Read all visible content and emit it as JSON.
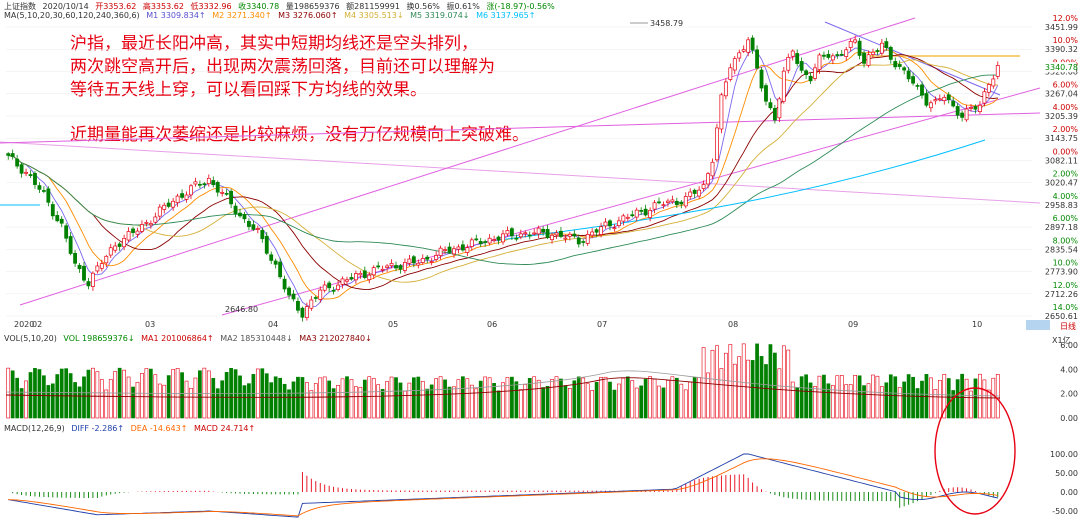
{
  "header": {
    "title": "上证指数",
    "date": "2020/10/14",
    "open": "开3353.62",
    "high": "高3353.62",
    "low": "低3332.96",
    "close": "收3340.78",
    "volume": "量198659376",
    "amount": "额281159991",
    "turnover": "换0.56%",
    "amplitude": "振0.61%",
    "change": "涨(-18.97)-0.56%"
  },
  "ma_line": {
    "label": "MA(5,10,20,30,60,120,240,360,6)",
    "m1": "M1 3309.834↑",
    "m2": "M2 3271.340↑",
    "m3": "M3 3276.060↑",
    "m4": "M4 3305.513↓",
    "m5": "M5 3319.074↓",
    "m6": "M6 3137.965↑"
  },
  "annotations": [
    "沪指，最近长阳冲高，其实中短期均线还是空头排列，",
    "两次跳空高开后，出现两次震荡回落，目前还可以理解为",
    "等待五天线上穿，可以看回踩下方均线的效果。",
    "近期量能再次萎缩还是比较麻烦，没有万亿规模向上突破难。"
  ],
  "vol_header": {
    "label": "VOL(5,10,20)",
    "vol": "VOL 198659376↓",
    "ma1": "MA1 201006864↑",
    "ma2": "MA2 185310448↓",
    "ma3": "MA3 212027840↓"
  },
  "macd_header": {
    "label": "MACD(12,26,9)",
    "diff": "DIFF -2.286↑",
    "dea": "DEA -14.643↑",
    "macd": "MACD 24.714↑"
  },
  "price_axis_right": [
    "3451.99",
    "3390.32",
    "3328.68",
    "3267.04",
    "3205.39",
    "3143.75",
    "3082.11",
    "3020.47",
    "2958.83",
    "2897.18",
    "2835.54",
    "2773.90",
    "2712.26",
    "2650.61"
  ],
  "pct_axis_right": [
    "12.0%",
    "10.0%",
    "8.00%",
    "6.00%",
    "4.00%",
    "2.00%",
    "0.00%",
    "2.00%",
    "4.00%",
    "6.00%",
    "8.00%",
    "10.0%",
    "12.0%",
    "14.0%"
  ],
  "current_price_label": "3340.78",
  "period_label": "日线",
  "vol_axis": {
    "unit": "X1亿",
    "ticks": [
      "6.00",
      "4.00",
      "2.00",
      "0.00"
    ]
  },
  "macd_axis": {
    "ticks": [
      "100.00",
      "50.00",
      "0.00",
      "-50.00"
    ]
  },
  "peak_label": "3458.79",
  "trough_label": "2646.80",
  "x_labels": [
    "2020",
    "02",
    "03",
    "04",
    "05",
    "06",
    "07",
    "08",
    "09",
    "10"
  ],
  "colors": {
    "up": "#e60012",
    "down": "#008000",
    "ma5": "#7b68ee",
    "ma10": "#ff8c00",
    "ma20": "#8b0000",
    "ma60": "#2e8b57",
    "ma120": "#00bfff",
    "trend": "#e040e0"
  },
  "chart_data": {
    "type": "candlestick",
    "ylim": [
      2650.61,
      3451.99
    ],
    "y_ticks": [
      3451.99,
      3390.32,
      3328.68,
      3267.04,
      3205.39,
      3143.75,
      3082.11,
      3020.47,
      2958.83,
      2897.18,
      2835.54,
      2773.9,
      2712.26,
      2650.61
    ],
    "x_months": [
      "2020-01",
      "02",
      "03",
      "04",
      "05",
      "06",
      "07",
      "08",
      "09",
      "10"
    ],
    "annotated_points": [
      {
        "label": "3458.79",
        "y": 3458.79
      },
      {
        "label": "2646.80",
        "y": 2646.8
      }
    ],
    "last_close": 3340.78,
    "volume_ylim": [
      0,
      6
    ],
    "volume_ticks": [
      0,
      2,
      4,
      6
    ],
    "macd_ticks": [
      -50,
      0,
      50,
      100
    ]
  }
}
